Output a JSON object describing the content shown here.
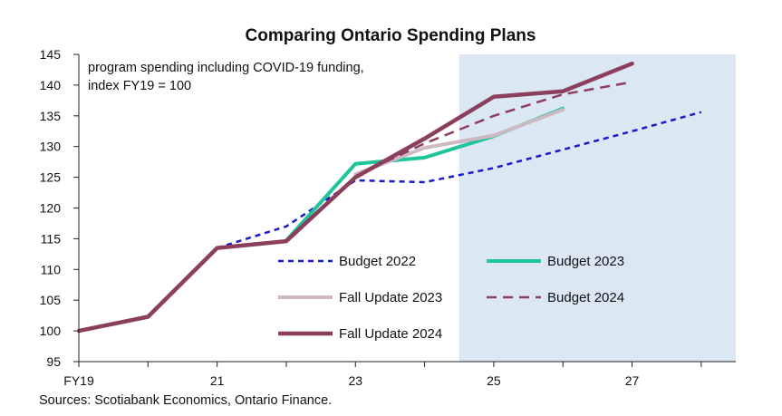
{
  "chart_data": {
    "type": "line",
    "title": "Comparing Ontario Spending Plans",
    "annotation": [
      "program spending including COVID-19 funding,",
      "index FY19 = 100"
    ],
    "source": "Sources: Scotiabank Economics, Ontario Finance.",
    "x_ticks": [
      {
        "value": 19,
        "label": "FY19"
      },
      {
        "value": 21,
        "label": "21"
      },
      {
        "value": 23,
        "label": "23"
      },
      {
        "value": 25,
        "label": "25"
      },
      {
        "value": 27,
        "label": "27"
      }
    ],
    "xlim": [
      19,
      28.5
    ],
    "ylim": [
      95,
      145
    ],
    "y_ticks": [
      95,
      100,
      105,
      110,
      115,
      120,
      125,
      130,
      135,
      140,
      145
    ],
    "shaded_region": {
      "x_start": 24.5,
      "x_end": 28.5,
      "color": "#dce7f4"
    },
    "legend_placement": "lower-center",
    "series": [
      {
        "name": "Budget 2022",
        "color": "#1a1acc",
        "style": "dotted",
        "width": 2.5,
        "x": [
          21,
          22,
          23,
          24,
          25,
          26,
          27,
          28
        ],
        "y": [
          113.5,
          117,
          124.5,
          124.2,
          126.5,
          129.5,
          132.5,
          135.6
        ]
      },
      {
        "name": "Budget 2023",
        "color": "#1fc59a",
        "style": "solid",
        "width": 4,
        "x": [
          22,
          23,
          24,
          25,
          26
        ],
        "y": [
          114.7,
          127.2,
          128.2,
          131.7,
          136.2
        ]
      },
      {
        "name": "Fall Update 2023",
        "color": "#cdb9c1",
        "style": "solid",
        "width": 4,
        "x": [
          23,
          24,
          25,
          26
        ],
        "y": [
          125.5,
          129.8,
          131.8,
          136
        ]
      },
      {
        "name": "Budget 2024",
        "color": "#8b3f5c",
        "style": "dashed",
        "width": 2.5,
        "x": [
          23,
          24,
          25,
          26,
          27
        ],
        "y": [
          125.2,
          130.5,
          135,
          138.5,
          140.5
        ]
      },
      {
        "name": "Fall Update 2024",
        "color": "#8b3f5c",
        "style": "solid",
        "width": 4.5,
        "x": [
          19,
          20,
          21,
          22,
          23,
          24,
          25,
          26,
          27
        ],
        "y": [
          100,
          102.3,
          113.5,
          114.6,
          125,
          131.3,
          138.1,
          139,
          143.5
        ]
      }
    ]
  }
}
